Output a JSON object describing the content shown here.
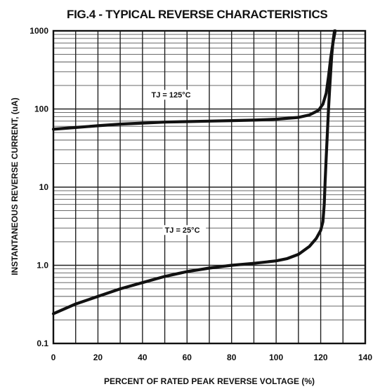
{
  "chart_data": {
    "type": "line",
    "title": "FIG.4 - TYPICAL REVERSE CHARACTERISTICS",
    "xlabel": "PERCENT OF RATED PEAK REVERSE VOLTAGE (%)",
    "ylabel": "INSTANTANEOUS REVERSE CURRENT, (uA)",
    "xlim": [
      0,
      140
    ],
    "ylim": [
      0.1,
      1000
    ],
    "yscale": "log",
    "grid": true,
    "x_ticks": [
      "0",
      "20",
      "40",
      "60",
      "80",
      "100",
      "120",
      "140"
    ],
    "y_ticks": [
      "0.1",
      "1.0",
      "10",
      "100",
      "1000"
    ],
    "y_tick_values": [
      0.1,
      1,
      10,
      100,
      1000
    ],
    "series": [
      {
        "name": "TJ = 125°C",
        "x": [
          0,
          10,
          20,
          30,
          40,
          50,
          60,
          70,
          80,
          90,
          100,
          110,
          115,
          119,
          121,
          122.5,
          123.5,
          124.5,
          125.5,
          126.5
        ],
        "y": [
          55,
          58,
          61,
          64,
          66,
          68,
          69,
          70,
          71,
          72,
          74,
          78,
          84,
          96,
          115,
          160,
          260,
          450,
          700,
          1000
        ]
      },
      {
        "name": "TJ = 25°C",
        "x": [
          0,
          10,
          20,
          30,
          40,
          50,
          60,
          70,
          80,
          90,
          100,
          105,
          110,
          115,
          118,
          120,
          121,
          121.6,
          122,
          122.5,
          123,
          123.5,
          124,
          124.5,
          125,
          125.6,
          126.2
        ],
        "y": [
          0.24,
          0.32,
          0.4,
          0.5,
          0.6,
          0.72,
          0.83,
          0.92,
          1.0,
          1.06,
          1.14,
          1.22,
          1.38,
          1.75,
          2.2,
          2.8,
          3.6,
          6,
          12,
          25,
          50,
          100,
          180,
          300,
          500,
          750,
          1000
        ]
      }
    ],
    "annotations": [
      {
        "text": "TJ = 125°C",
        "x": 44,
        "y": 140
      },
      {
        "text": "TJ = 25°C",
        "x": 50,
        "y": 2.6
      }
    ]
  }
}
